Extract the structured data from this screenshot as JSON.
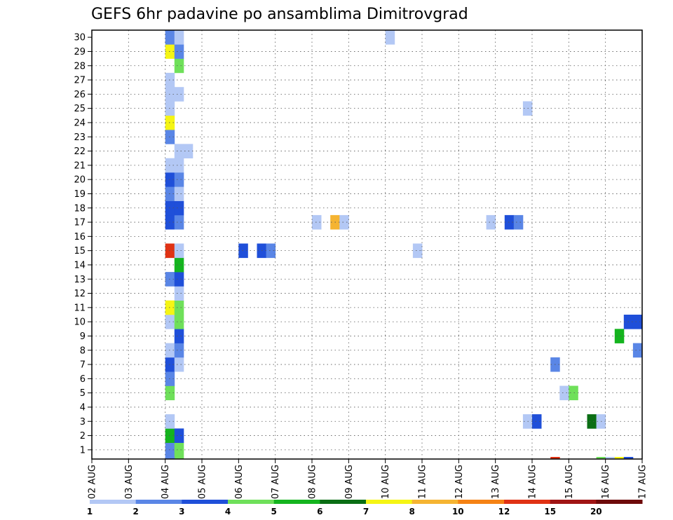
{
  "chart_data": {
    "type": "heatmap",
    "title": "GEFS 6hr padavine po ansamblima Dimitrovgrad",
    "xlabel": "",
    "ylabel": "",
    "x_ticks": [
      "02 AUG",
      "03 AUG",
      "04 AUG",
      "05 AUG",
      "06 AUG",
      "07 AUG",
      "08 AUG",
      "09 AUG",
      "10 AUG",
      "11 AUG",
      "12 AUG",
      "13 AUG",
      "14 AUG",
      "15 AUG",
      "16 AUG",
      "17 AUG"
    ],
    "y_ticks": [
      "1",
      "2",
      "3",
      "4",
      "5",
      "6",
      "7",
      "8",
      "9",
      "10",
      "11",
      "12",
      "13",
      "14",
      "15",
      "16",
      "17",
      "18",
      "19",
      "20",
      "21",
      "22",
      "23",
      "24",
      "25",
      "26",
      "27",
      "28",
      "29",
      "30"
    ],
    "x_step": "6hr",
    "grid": true,
    "legend": {
      "position": "bottom",
      "bins": [
        {
          "from": "1",
          "to": "2",
          "color": "#b3c8f5"
        },
        {
          "from": "2",
          "to": "3",
          "color": "#5a86e6"
        },
        {
          "from": "3",
          "to": "4",
          "color": "#1f4fd9"
        },
        {
          "from": "4",
          "to": "5",
          "color": "#6fe05a"
        },
        {
          "from": "5",
          "to": "6",
          "color": "#14b41e"
        },
        {
          "from": "6",
          "to": "7",
          "color": "#0a6e14"
        },
        {
          "from": "7",
          "to": "8",
          "color": "#f5f514"
        },
        {
          "from": "8",
          "to": "10",
          "color": "#f5b432"
        },
        {
          "from": "10",
          "to": "12",
          "color": "#f58214"
        },
        {
          "from": "12",
          "to": "15",
          "color": "#e03214"
        },
        {
          "from": "15",
          "to": "20",
          "color": "#a01414"
        },
        {
          "from": "20",
          "to": "",
          "color": "#6e0a0a"
        }
      ],
      "labels": [
        "1",
        "2",
        "3",
        "4",
        "5",
        "6",
        "7",
        "8",
        "10",
        "12",
        "15",
        "20"
      ]
    },
    "cells": [
      {
        "x": "04 AUG 00Z",
        "member": 0,
        "bin": 2
      },
      {
        "x": "04 AUG 06Z",
        "member": 0,
        "bin": 4
      },
      {
        "x": "04 AUG 00Z",
        "member": 1,
        "bin": 5
      },
      {
        "x": "04 AUG 06Z",
        "member": 1,
        "bin": 3
      },
      {
        "x": "04 AUG 00Z",
        "member": 2,
        "bin": 1
      },
      {
        "x": "04 AUG 00Z",
        "member": 4,
        "bin": 4
      },
      {
        "x": "04 AUG 00Z",
        "member": 5,
        "bin": 2
      },
      {
        "x": "04 AUG 00Z",
        "member": 6,
        "bin": 3
      },
      {
        "x": "04 AUG 06Z",
        "member": 6,
        "bin": 1
      },
      {
        "x": "04 AUG 00Z",
        "member": 7,
        "bin": 1
      },
      {
        "x": "04 AUG 06Z",
        "member": 7,
        "bin": 2
      },
      {
        "x": "04 AUG 06Z",
        "member": 8,
        "bin": 3
      },
      {
        "x": "04 AUG 00Z",
        "member": 9,
        "bin": 1
      },
      {
        "x": "04 AUG 06Z",
        "member": 9,
        "bin": 4
      },
      {
        "x": "04 AUG 00Z",
        "member": 10,
        "bin": 7
      },
      {
        "x": "04 AUG 06Z",
        "member": 10,
        "bin": 4
      },
      {
        "x": "04 AUG 06Z",
        "member": 11,
        "bin": 1
      },
      {
        "x": "04 AUG 00Z",
        "member": 12,
        "bin": 2
      },
      {
        "x": "04 AUG 06Z",
        "member": 12,
        "bin": 3
      },
      {
        "x": "04 AUG 06Z",
        "member": 13,
        "bin": 5
      },
      {
        "x": "04 AUG 00Z",
        "member": 14,
        "bin": 10
      },
      {
        "x": "04 AUG 06Z",
        "member": 14,
        "bin": 1
      },
      {
        "x": "04 AUG 00Z",
        "member": 16,
        "bin": 3
      },
      {
        "x": "04 AUG 06Z",
        "member": 16,
        "bin": 2
      },
      {
        "x": "04 AUG 00Z",
        "member": 17,
        "bin": 3
      },
      {
        "x": "04 AUG 06Z",
        "member": 17,
        "bin": 3
      },
      {
        "x": "04 AUG 00Z",
        "member": 18,
        "bin": 2
      },
      {
        "x": "04 AUG 06Z",
        "member": 18,
        "bin": 1
      },
      {
        "x": "04 AUG 00Z",
        "member": 19,
        "bin": 3
      },
      {
        "x": "04 AUG 06Z",
        "member": 19,
        "bin": 2
      },
      {
        "x": "04 AUG 00Z",
        "member": 20,
        "bin": 1
      },
      {
        "x": "04 AUG 06Z",
        "member": 20,
        "bin": 1
      },
      {
        "x": "04 AUG 06Z",
        "member": 21,
        "bin": 1
      },
      {
        "x": "04 AUG 12Z",
        "member": 21,
        "bin": 1
      },
      {
        "x": "04 AUG 00Z",
        "member": 22,
        "bin": 2
      },
      {
        "x": "04 AUG 00Z",
        "member": 23,
        "bin": 7
      },
      {
        "x": "04 AUG 00Z",
        "member": 24,
        "bin": 1
      },
      {
        "x": "04 AUG 00Z",
        "member": 25,
        "bin": 1
      },
      {
        "x": "04 AUG 06Z",
        "member": 25,
        "bin": 1
      },
      {
        "x": "04 AUG 00Z",
        "member": 26,
        "bin": 1
      },
      {
        "x": "04 AUG 06Z",
        "member": 27,
        "bin": 4
      },
      {
        "x": "04 AUG 00Z",
        "member": 28,
        "bin": 7
      },
      {
        "x": "04 AUG 06Z",
        "member": 28,
        "bin": 2
      },
      {
        "x": "04 AUG 00Z",
        "member": 29,
        "bin": 2
      },
      {
        "x": "04 AUG 06Z",
        "member": 29,
        "bin": 1
      },
      {
        "x": "04 AUG 06Z",
        "member": -1,
        "bin": 4
      },
      {
        "x": "04 AUG 00Z",
        "member": -1,
        "bin": 2
      },
      {
        "x": "06 AUG 00Z",
        "member": 14,
        "bin": 3
      },
      {
        "x": "06 AUG 12Z",
        "member": 14,
        "bin": 3
      },
      {
        "x": "06 AUG 18Z",
        "member": 14,
        "bin": 2
      },
      {
        "x": "08 AUG 00Z",
        "member": 16,
        "bin": 1
      },
      {
        "x": "08 AUG 12Z",
        "member": 16,
        "bin": 8
      },
      {
        "x": "08 AUG 18Z",
        "member": 16,
        "bin": 1
      },
      {
        "x": "10 AUG 00Z",
        "member": 29,
        "bin": 1
      },
      {
        "x": "10 AUG 18Z",
        "member": 14,
        "bin": 1
      },
      {
        "x": "12 AUG 18Z",
        "member": 16,
        "bin": 1
      },
      {
        "x": "13 AUG 06Z",
        "member": 16,
        "bin": 3
      },
      {
        "x": "13 AUG 12Z",
        "member": 16,
        "bin": 2
      },
      {
        "x": "13 AUG 18Z",
        "member": 24,
        "bin": 1
      },
      {
        "x": "13 AUG 18Z",
        "member": 2,
        "bin": 1
      },
      {
        "x": "14 AUG 00Z",
        "member": 2,
        "bin": 3
      },
      {
        "x": "14 AUG 12Z",
        "member": 6,
        "bin": 2
      },
      {
        "x": "14 AUG 12Z",
        "member": -1,
        "bin": 10
      },
      {
        "x": "14 AUG 18Z",
        "member": 4,
        "bin": 1
      },
      {
        "x": "15 AUG 00Z",
        "member": 4,
        "bin": 4
      },
      {
        "x": "15 AUG 12Z",
        "member": 2,
        "bin": 6
      },
      {
        "x": "15 AUG 18Z",
        "member": 2,
        "bin": 1
      },
      {
        "x": "15 AUG 18Z",
        "member": -1,
        "bin": 4
      },
      {
        "x": "16 AUG 00Z",
        "member": -1,
        "bin": 1
      },
      {
        "x": "16 AUG 06Z",
        "member": -1,
        "bin": 7
      },
      {
        "x": "16 AUG 12Z",
        "member": -1,
        "bin": 3
      },
      {
        "x": "16 AUG 06Z",
        "member": 8,
        "bin": 5
      },
      {
        "x": "16 AUG 12Z",
        "member": 9,
        "bin": 3
      },
      {
        "x": "16 AUG 18Z",
        "member": 9,
        "bin": 3
      },
      {
        "x": "16 AUG 18Z",
        "member": 7,
        "bin": 2
      }
    ]
  }
}
